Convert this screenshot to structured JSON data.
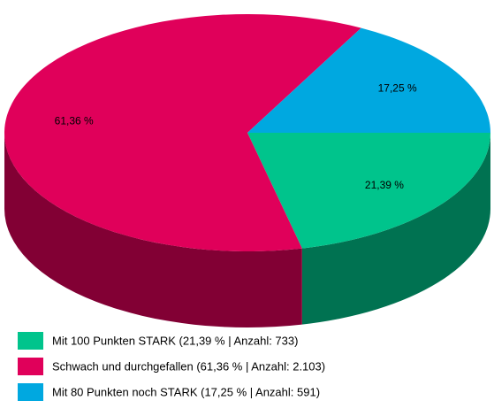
{
  "chart_data": {
    "type": "pie3d",
    "categories": [
      "Mit 100 Punkten STARK (21,39 % | Anzahl: 733)",
      "Schwach und durchgefallen (61,36 % | Anzahl: 2.103)",
      "Mit 80 Punkten noch STARK (17,25 % | Anzahl: 591)"
    ],
    "values": [
      21.39,
      61.36,
      17.25
    ],
    "value_labels": [
      "21,39 %",
      "61,36 %",
      "17,25 %"
    ],
    "colors": [
      "#00c48c",
      "#e0005a",
      "#00a8e0"
    ]
  }
}
